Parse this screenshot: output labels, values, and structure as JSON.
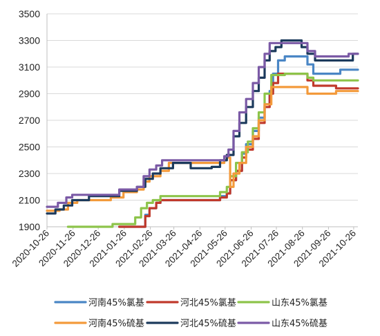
{
  "chart_data": {
    "type": "line",
    "title": "",
    "xlabel": "",
    "ylabel": "",
    "ylim": [
      1900,
      3500
    ],
    "yticks": [
      1900,
      2100,
      2300,
      2500,
      2700,
      2900,
      3100,
      3300,
      3500
    ],
    "xlim": [
      "2020-10-26",
      "2021-10-31"
    ],
    "xticks": [
      "2020-10-26",
      "2020-11-26",
      "2020-12-26",
      "2021-01-26",
      "2021-02-26",
      "2021-03-26",
      "2021-04-26",
      "2021-05-26",
      "2021-06-26",
      "2021-07-26",
      "2021-08-26",
      "2021-09-26",
      "2021-10-26"
    ],
    "grid": true,
    "legend_position": "bottom",
    "series": [
      {
        "name": "河南45%氯基",
        "color": "#4a86c5",
        "points": [
          [
            "2021-01-20",
            1900
          ],
          [
            "2021-02-15",
            1900
          ],
          [
            "2021-02-20",
            1990
          ],
          [
            "2021-02-25",
            2040
          ],
          [
            "2021-03-05",
            2080
          ],
          [
            "2021-03-10",
            2100
          ],
          [
            "2021-05-10",
            2100
          ],
          [
            "2021-05-20",
            2130
          ],
          [
            "2021-05-28",
            2150
          ],
          [
            "2021-06-01",
            2250
          ],
          [
            "2021-06-08",
            2320
          ],
          [
            "2021-06-15",
            2450
          ],
          [
            "2021-06-20",
            2520
          ],
          [
            "2021-06-28",
            2620
          ],
          [
            "2021-07-05",
            2720
          ],
          [
            "2021-07-12",
            2820
          ],
          [
            "2021-07-18",
            2920
          ],
          [
            "2021-07-22",
            3050
          ],
          [
            "2021-07-28",
            3150
          ],
          [
            "2021-08-05",
            3180
          ],
          [
            "2021-08-25",
            3180
          ],
          [
            "2021-09-01",
            3120
          ],
          [
            "2021-09-08",
            3050
          ],
          [
            "2021-10-05",
            3050
          ],
          [
            "2021-10-10",
            3080
          ],
          [
            "2021-10-31",
            3080
          ]
        ]
      },
      {
        "name": "河北45%氯基",
        "color": "#c0392b",
        "points": [
          [
            "2021-01-20",
            1900
          ],
          [
            "2021-02-15",
            1900
          ],
          [
            "2021-02-20",
            1980
          ],
          [
            "2021-02-25",
            2040
          ],
          [
            "2021-03-05",
            2080
          ],
          [
            "2021-03-10",
            2100
          ],
          [
            "2021-05-10",
            2100
          ],
          [
            "2021-05-20",
            2120
          ],
          [
            "2021-05-28",
            2150
          ],
          [
            "2021-06-01",
            2250
          ],
          [
            "2021-06-08",
            2320
          ],
          [
            "2021-06-15",
            2420
          ],
          [
            "2021-06-20",
            2480
          ],
          [
            "2021-06-28",
            2560
          ],
          [
            "2021-07-05",
            2680
          ],
          [
            "2021-07-12",
            2800
          ],
          [
            "2021-07-18",
            2900
          ],
          [
            "2021-07-22",
            2980
          ],
          [
            "2021-07-28",
            3050
          ],
          [
            "2021-08-05",
            3050
          ],
          [
            "2021-08-25",
            3050
          ],
          [
            "2021-09-01",
            3000
          ],
          [
            "2021-09-08",
            2960
          ],
          [
            "2021-10-05",
            2940
          ],
          [
            "2021-10-10",
            2940
          ],
          [
            "2021-10-31",
            2940
          ]
        ]
      },
      {
        "name": "山东45%氯基",
        "color": "#8dc44a",
        "points": [
          [
            "2020-11-20",
            1900
          ],
          [
            "2021-01-08",
            1900
          ],
          [
            "2021-01-12",
            1920
          ],
          [
            "2021-02-01",
            1920
          ],
          [
            "2021-02-08",
            1970
          ],
          [
            "2021-02-15",
            2040
          ],
          [
            "2021-02-22",
            2080
          ],
          [
            "2021-03-01",
            2100
          ],
          [
            "2021-03-10",
            2130
          ],
          [
            "2021-05-10",
            2130
          ],
          [
            "2021-05-20",
            2160
          ],
          [
            "2021-05-28",
            2200
          ],
          [
            "2021-06-01",
            2280
          ],
          [
            "2021-06-08",
            2380
          ],
          [
            "2021-06-15",
            2460
          ],
          [
            "2021-06-22",
            2540
          ],
          [
            "2021-06-28",
            2640
          ],
          [
            "2021-07-05",
            2760
          ],
          [
            "2021-07-12",
            2900
          ],
          [
            "2021-07-20",
            3040
          ],
          [
            "2021-08-05",
            3050
          ],
          [
            "2021-08-25",
            3050
          ],
          [
            "2021-09-01",
            3020
          ],
          [
            "2021-09-08",
            3000
          ],
          [
            "2021-10-31",
            3000
          ]
        ]
      },
      {
        "name": "河南45%硫基",
        "color": "#f39a3b",
        "points": [
          [
            "2020-10-26",
            2020
          ],
          [
            "2020-11-10",
            2030
          ],
          [
            "2020-11-20",
            2080
          ],
          [
            "2020-12-01",
            2100
          ],
          [
            "2021-01-10",
            2120
          ],
          [
            "2021-01-25",
            2160
          ],
          [
            "2021-02-10",
            2180
          ],
          [
            "2021-02-18",
            2240
          ],
          [
            "2021-02-25",
            2280
          ],
          [
            "2021-03-10",
            2320
          ],
          [
            "2021-03-20",
            2380
          ],
          [
            "2021-05-15",
            2380
          ],
          [
            "2021-05-25",
            2400
          ],
          [
            "2021-05-28",
            2420
          ],
          [
            "2021-06-01",
            2200
          ],
          [
            "2021-06-05",
            2300
          ],
          [
            "2021-06-12",
            2380
          ],
          [
            "2021-06-20",
            2500
          ],
          [
            "2021-06-28",
            2580
          ],
          [
            "2021-07-05",
            2700
          ],
          [
            "2021-07-12",
            2820
          ],
          [
            "2021-07-20",
            2950
          ],
          [
            "2021-08-05",
            2950
          ],
          [
            "2021-08-25",
            2950
          ],
          [
            "2021-09-01",
            2900
          ],
          [
            "2021-09-15",
            2900
          ],
          [
            "2021-10-05",
            2920
          ],
          [
            "2021-10-31",
            2920
          ]
        ]
      },
      {
        "name": "河北45%硫基",
        "color": "#1c3a5c",
        "points": [
          [
            "2020-10-26",
            2000
          ],
          [
            "2020-11-05",
            2030
          ],
          [
            "2020-11-15",
            2060
          ],
          [
            "2020-11-25",
            2100
          ],
          [
            "2020-12-15",
            2130
          ],
          [
            "2021-01-10",
            2130
          ],
          [
            "2021-01-20",
            2170
          ],
          [
            "2021-02-10",
            2200
          ],
          [
            "2021-02-20",
            2260
          ],
          [
            "2021-03-01",
            2300
          ],
          [
            "2021-03-10",
            2340
          ],
          [
            "2021-03-25",
            2380
          ],
          [
            "2021-04-10",
            2380
          ],
          [
            "2021-04-15",
            2340
          ],
          [
            "2021-05-10",
            2350
          ],
          [
            "2021-05-20",
            2400
          ],
          [
            "2021-05-28",
            2440
          ],
          [
            "2021-06-05",
            2580
          ],
          [
            "2021-06-12",
            2680
          ],
          [
            "2021-06-20",
            2800
          ],
          [
            "2021-06-28",
            2920
          ],
          [
            "2021-07-05",
            3020
          ],
          [
            "2021-07-12",
            3150
          ],
          [
            "2021-07-18",
            3220
          ],
          [
            "2021-07-25",
            3250
          ],
          [
            "2021-08-01",
            3300
          ],
          [
            "2021-08-20",
            3300
          ],
          [
            "2021-08-25",
            3250
          ],
          [
            "2021-09-01",
            3200
          ],
          [
            "2021-09-10",
            3150
          ],
          [
            "2021-10-15",
            3150
          ],
          [
            "2021-10-25",
            3200
          ],
          [
            "2021-10-31",
            3200
          ]
        ]
      },
      {
        "name": "山东45%硫基",
        "color": "#7b5aa6",
        "points": [
          [
            "2020-10-26",
            2050
          ],
          [
            "2020-11-08",
            2080
          ],
          [
            "2020-11-18",
            2120
          ],
          [
            "2020-11-25",
            2140
          ],
          [
            "2021-01-10",
            2140
          ],
          [
            "2021-01-20",
            2180
          ],
          [
            "2021-02-10",
            2200
          ],
          [
            "2021-02-18",
            2280
          ],
          [
            "2021-02-25",
            2330
          ],
          [
            "2021-03-05",
            2360
          ],
          [
            "2021-03-12",
            2400
          ],
          [
            "2021-05-15",
            2400
          ],
          [
            "2021-05-25",
            2430
          ],
          [
            "2021-05-30",
            2480
          ],
          [
            "2021-06-05",
            2620
          ],
          [
            "2021-06-12",
            2760
          ],
          [
            "2021-06-20",
            2860
          ],
          [
            "2021-06-28",
            2980
          ],
          [
            "2021-07-05",
            3100
          ],
          [
            "2021-07-12",
            3200
          ],
          [
            "2021-07-18",
            3280
          ],
          [
            "2021-08-25",
            3280
          ],
          [
            "2021-09-01",
            3220
          ],
          [
            "2021-09-10",
            3180
          ],
          [
            "2021-10-15",
            3180
          ],
          [
            "2021-10-20",
            3200
          ],
          [
            "2021-10-31",
            3200
          ]
        ]
      }
    ]
  }
}
